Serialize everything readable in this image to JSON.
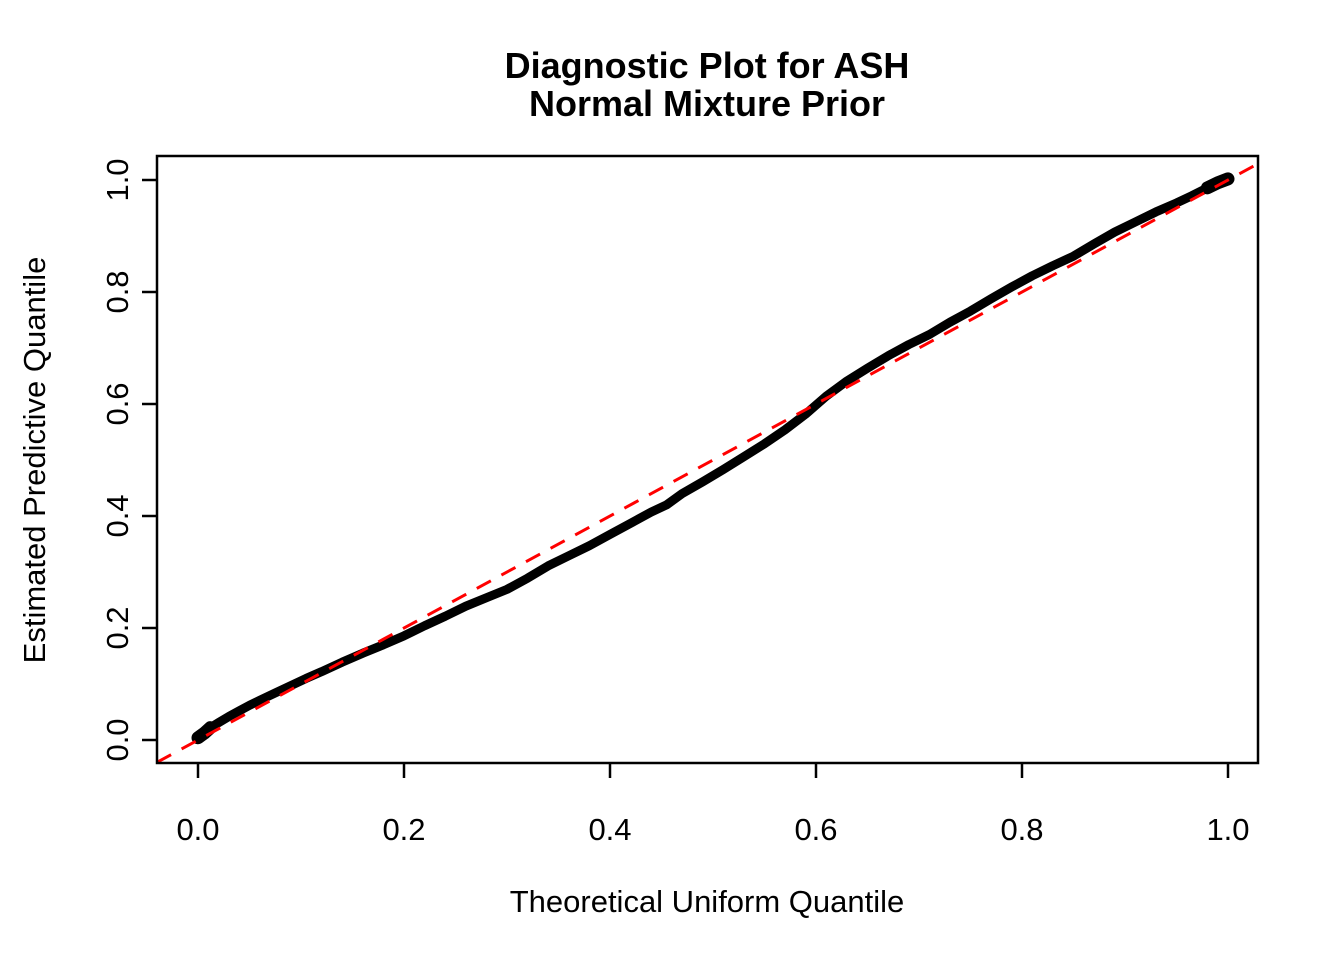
{
  "title": {
    "line1": "Diagnostic Plot for ASH",
    "line2": "Normal Mixture Prior"
  },
  "colors": {
    "background": "#FFFFFF",
    "axis": "#000000",
    "points": "#000000",
    "reference_line": "#FF0000"
  },
  "chart_data": {
    "type": "scatter",
    "title": "Diagnostic Plot for ASH\nNormal Mixture Prior",
    "xlabel": "Theoretical Uniform Quantile",
    "ylabel": "Estimated Predictive Quantile",
    "xlim": [
      -0.04,
      1.03
    ],
    "ylim": [
      -0.04,
      1.04
    ],
    "grid": false,
    "legend": null,
    "x_ticks": [
      0.0,
      0.2,
      0.4,
      0.6,
      0.8,
      1.0
    ],
    "y_ticks": [
      0.0,
      0.2,
      0.4,
      0.6,
      0.8,
      1.0
    ],
    "x_tick_labels": [
      "0.0",
      "0.2",
      "0.4",
      "0.6",
      "0.8",
      "1.0"
    ],
    "y_tick_labels": [
      "0.0",
      "0.2",
      "0.4",
      "0.6",
      "0.8",
      "1.0"
    ],
    "series": [
      {
        "name": "estimated-predictive-quantile-curve",
        "type": "points",
        "color": "#000000",
        "marker_size": 9,
        "points": [
          [
            0.0,
            0.004
          ],
          [
            0.006,
            0.012
          ],
          [
            0.012,
            0.022
          ],
          [
            0.02,
            0.031
          ],
          [
            0.03,
            0.042
          ],
          [
            0.04,
            0.052
          ],
          [
            0.05,
            0.062
          ],
          [
            0.06,
            0.071
          ],
          [
            0.075,
            0.084
          ],
          [
            0.09,
            0.097
          ],
          [
            0.105,
            0.11
          ],
          [
            0.12,
            0.122
          ],
          [
            0.14,
            0.139
          ],
          [
            0.16,
            0.155
          ],
          [
            0.18,
            0.17
          ],
          [
            0.2,
            0.186
          ],
          [
            0.22,
            0.204
          ],
          [
            0.24,
            0.221
          ],
          [
            0.26,
            0.239
          ],
          [
            0.28,
            0.254
          ],
          [
            0.3,
            0.269
          ],
          [
            0.32,
            0.289
          ],
          [
            0.34,
            0.311
          ],
          [
            0.36,
            0.329
          ],
          [
            0.38,
            0.347
          ],
          [
            0.4,
            0.367
          ],
          [
            0.42,
            0.387
          ],
          [
            0.44,
            0.407
          ],
          [
            0.455,
            0.42
          ],
          [
            0.47,
            0.44
          ],
          [
            0.49,
            0.461
          ],
          [
            0.51,
            0.483
          ],
          [
            0.53,
            0.506
          ],
          [
            0.55,
            0.529
          ],
          [
            0.57,
            0.554
          ],
          [
            0.59,
            0.582
          ],
          [
            0.61,
            0.614
          ],
          [
            0.63,
            0.641
          ],
          [
            0.65,
            0.664
          ],
          [
            0.67,
            0.686
          ],
          [
            0.69,
            0.706
          ],
          [
            0.71,
            0.724
          ],
          [
            0.73,
            0.746
          ],
          [
            0.75,
            0.766
          ],
          [
            0.77,
            0.788
          ],
          [
            0.79,
            0.809
          ],
          [
            0.81,
            0.829
          ],
          [
            0.83,
            0.847
          ],
          [
            0.85,
            0.864
          ],
          [
            0.87,
            0.886
          ],
          [
            0.89,
            0.907
          ],
          [
            0.91,
            0.925
          ],
          [
            0.93,
            0.943
          ],
          [
            0.95,
            0.959
          ],
          [
            0.965,
            0.972
          ],
          [
            0.98,
            0.986
          ],
          [
            0.99,
            0.995
          ],
          [
            1.0,
            1.002
          ]
        ]
      }
    ],
    "reference_line": {
      "name": "identity-line",
      "equation": "y = x",
      "from": [
        0,
        0
      ],
      "to": [
        1,
        1
      ],
      "color": "#FF0000",
      "style": "dashed",
      "extends_to_plot_edges": true
    }
  }
}
